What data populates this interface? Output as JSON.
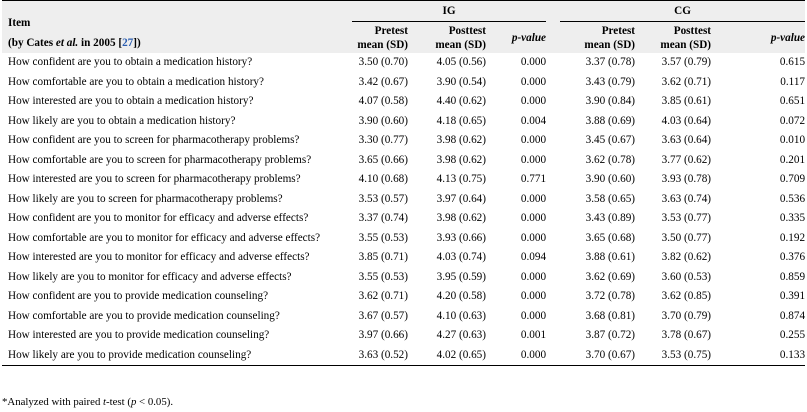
{
  "header": {
    "item_title": "Item",
    "item_source_prefix": "(by Cates ",
    "item_source_etal": "et al.",
    "item_source_mid": " in 2005 [",
    "item_source_ref": "27",
    "item_source_suffix": "])",
    "group_ig": "IG",
    "group_cg": "CG",
    "pretest": "Pretest",
    "posttest": "Posttest",
    "mean_sd": "mean (SD)",
    "pvalue": "p-value"
  },
  "rows": [
    {
      "item": "How confident are you to obtain a medication history?",
      "ig_pre": "3.50 (0.70)",
      "ig_post": "4.05 (0.56)",
      "ig_p": "0.000",
      "cg_pre": "3.37 (0.78)",
      "cg_post": "3.57 (0.79)",
      "cg_p": "0.615"
    },
    {
      "item": "How comfortable are you to obtain a medication history?",
      "ig_pre": "3.42 (0.67)",
      "ig_post": "3.90 (0.54)",
      "ig_p": "0.000",
      "cg_pre": "3.43 (0.79)",
      "cg_post": "3.62 (0.71)",
      "cg_p": "0.117"
    },
    {
      "item": "How interested are you to obtain a medication history?",
      "ig_pre": "4.07 (0.58)",
      "ig_post": "4.40 (0.62)",
      "ig_p": "0.000",
      "cg_pre": "3.90 (0.84)",
      "cg_post": "3.85 (0.61)",
      "cg_p": "0.651"
    },
    {
      "item": "How likely are you to obtain a medication history?",
      "ig_pre": "3.90 (0.60)",
      "ig_post": "4.18 (0.65)",
      "ig_p": "0.004",
      "cg_pre": "3.88 (0.69)",
      "cg_post": "4.03 (0.64)",
      "cg_p": "0.072"
    },
    {
      "item": "How confident are you to screen for pharmacotherapy problems?",
      "ig_pre": "3.30 (0.77)",
      "ig_post": "3.98 (0.62)",
      "ig_p": "0.000",
      "cg_pre": "3.45 (0.67)",
      "cg_post": "3.63 (0.64)",
      "cg_p": "0.010"
    },
    {
      "item": "How comfortable are you to screen for pharmacotherapy problems?",
      "ig_pre": "3.65 (0.66)",
      "ig_post": "3.98 (0.62)",
      "ig_p": "0.000",
      "cg_pre": "3.62 (0.78)",
      "cg_post": "3.77 (0.62)",
      "cg_p": "0.201"
    },
    {
      "item": "How interested are you to screen for pharmacotherapy problems?",
      "ig_pre": "4.10 (0.68)",
      "ig_post": "4.13 (0.75)",
      "ig_p": "0.771",
      "cg_pre": "3.90 (0.60)",
      "cg_post": "3.93 (0.78)",
      "cg_p": "0.709"
    },
    {
      "item": "How likely are you to screen for pharmacotherapy problems?",
      "ig_pre": "3.53 (0.57)",
      "ig_post": "3.97 (0.64)",
      "ig_p": "0.000",
      "cg_pre": "3.58 (0.65)",
      "cg_post": "3.63 (0.74)",
      "cg_p": "0.536"
    },
    {
      "item": "How confident are you to monitor for efficacy and adverse effects?",
      "ig_pre": "3.37 (0.74)",
      "ig_post": "3.98 (0.62)",
      "ig_p": "0.000",
      "cg_pre": "3.43 (0.89)",
      "cg_post": "3.53 (0.77)",
      "cg_p": "0.335"
    },
    {
      "item": "How comfortable are you to monitor for efficacy and adverse effects?",
      "ig_pre": "3.55 (0.53)",
      "ig_post": "3.93 (0.66)",
      "ig_p": "0.000",
      "cg_pre": "3.65 (0.68)",
      "cg_post": "3.50 (0.77)",
      "cg_p": "0.192"
    },
    {
      "item": "How interested are you to monitor for efficacy and adverse effects?",
      "ig_pre": "3.85 (0.71)",
      "ig_post": "4.03 (0.74)",
      "ig_p": "0.094",
      "cg_pre": "3.88 (0.61)",
      "cg_post": "3.82 (0.62)",
      "cg_p": "0.376"
    },
    {
      "item": "How likely are you to monitor for efficacy and adverse effects?",
      "ig_pre": "3.55 (0.53)",
      "ig_post": "3.95 (0.59)",
      "ig_p": "0.000",
      "cg_pre": "3.62 (0.69)",
      "cg_post": "3.60 (0.53)",
      "cg_p": "0.859"
    },
    {
      "item": "How confident are you to provide medication counseling?",
      "ig_pre": "3.62 (0.71)",
      "ig_post": "4.20 (0.58)",
      "ig_p": "0.000",
      "cg_pre": "3.72 (0.78)",
      "cg_post": "3.62 (0.85)",
      "cg_p": "0.391"
    },
    {
      "item": "How comfortable are you to provide medication counseling?",
      "ig_pre": "3.67 (0.57)",
      "ig_post": "4.10 (0.63)",
      "ig_p": "0.000",
      "cg_pre": "3.68 (0.81)",
      "cg_post": "3.70 (0.79)",
      "cg_p": "0.874"
    },
    {
      "item": "How interested are you to provide medication counseling?",
      "ig_pre": "3.97 (0.66)",
      "ig_post": "4.27 (0.63)",
      "ig_p": "0.001",
      "cg_pre": "3.87 (0.72)",
      "cg_post": "3.78 (0.67)",
      "cg_p": "0.255"
    },
    {
      "item": "How likely are you to provide medication counseling?",
      "ig_pre": "3.63 (0.52)",
      "ig_post": "4.02 (0.65)",
      "ig_p": "0.000",
      "cg_pre": "3.70 (0.67)",
      "cg_post": "3.53 (0.75)",
      "cg_p": "0.133"
    }
  ],
  "footnote": {
    "prefix": "*Analyzed with paired ",
    "t": "t",
    "mid": "-test (",
    "p": "p",
    "suffix": " < 0.05)."
  },
  "colors": {
    "header_bg": "#eeeeee",
    "ref_link": "#2a5db0"
  }
}
